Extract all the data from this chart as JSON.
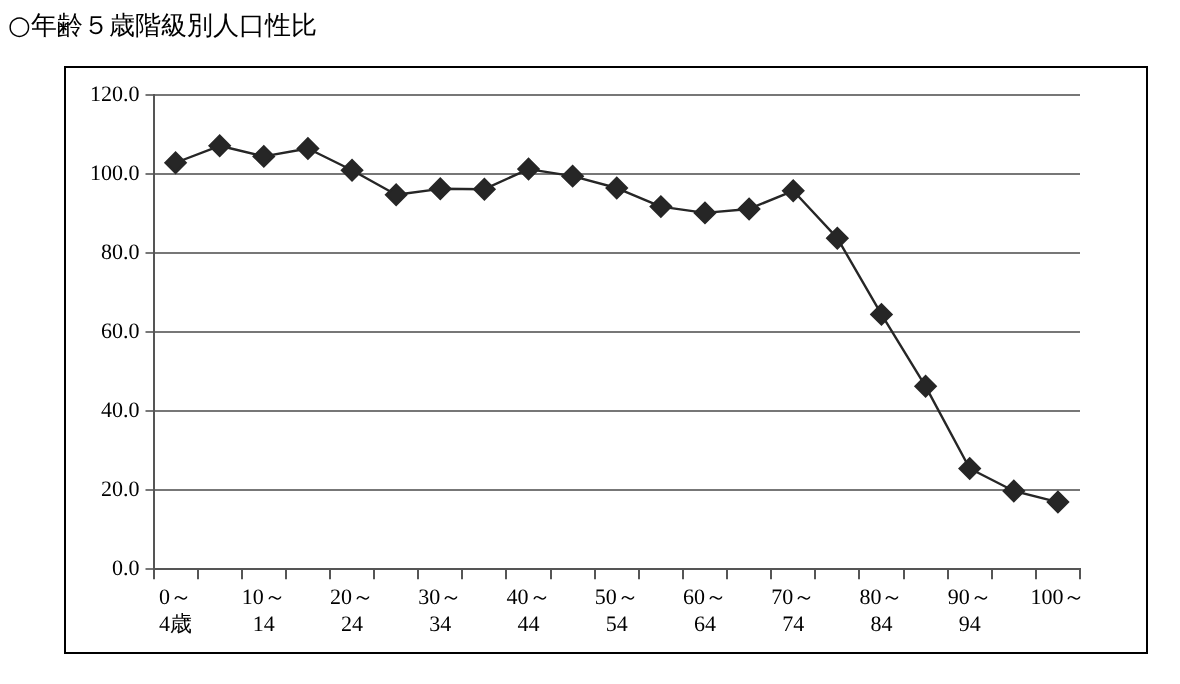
{
  "chart_data": {
    "type": "line",
    "title": "○年齢５歳階級別人口性比",
    "categories": [
      "0～\n4歳",
      null,
      "10～\n14",
      null,
      "20～\n24",
      null,
      "30～\n34",
      null,
      "40～\n44",
      null,
      "50～\n54",
      null,
      "60～\n64",
      null,
      "70～\n74",
      null,
      "80～\n84",
      null,
      "90～\n94",
      null,
      "100～"
    ],
    "series": [
      {
        "color": "#262626",
        "values": [
          102.9,
          107.2,
          104.5,
          106.5,
          101.0,
          94.8,
          96.3,
          96.2,
          101.3,
          99.5,
          96.5,
          91.8,
          90.2,
          91.2,
          95.8,
          83.8,
          64.5,
          46.3,
          25.5,
          19.8,
          17.0
        ]
      }
    ],
    "ylim": [
      0,
      120
    ],
    "yticks": [
      {
        "value": 0,
        "label": "0.0"
      },
      {
        "value": 20,
        "label": "20.0"
      },
      {
        "value": 40,
        "label": "40.0"
      },
      {
        "value": 60,
        "label": "60.0"
      },
      {
        "value": 80,
        "label": "80.0"
      },
      {
        "value": 100,
        "label": "100.0"
      },
      {
        "value": 120,
        "label": "120.0"
      }
    ],
    "grid": "y",
    "legend": false,
    "marker": "diamond",
    "line_style": "solid"
  }
}
